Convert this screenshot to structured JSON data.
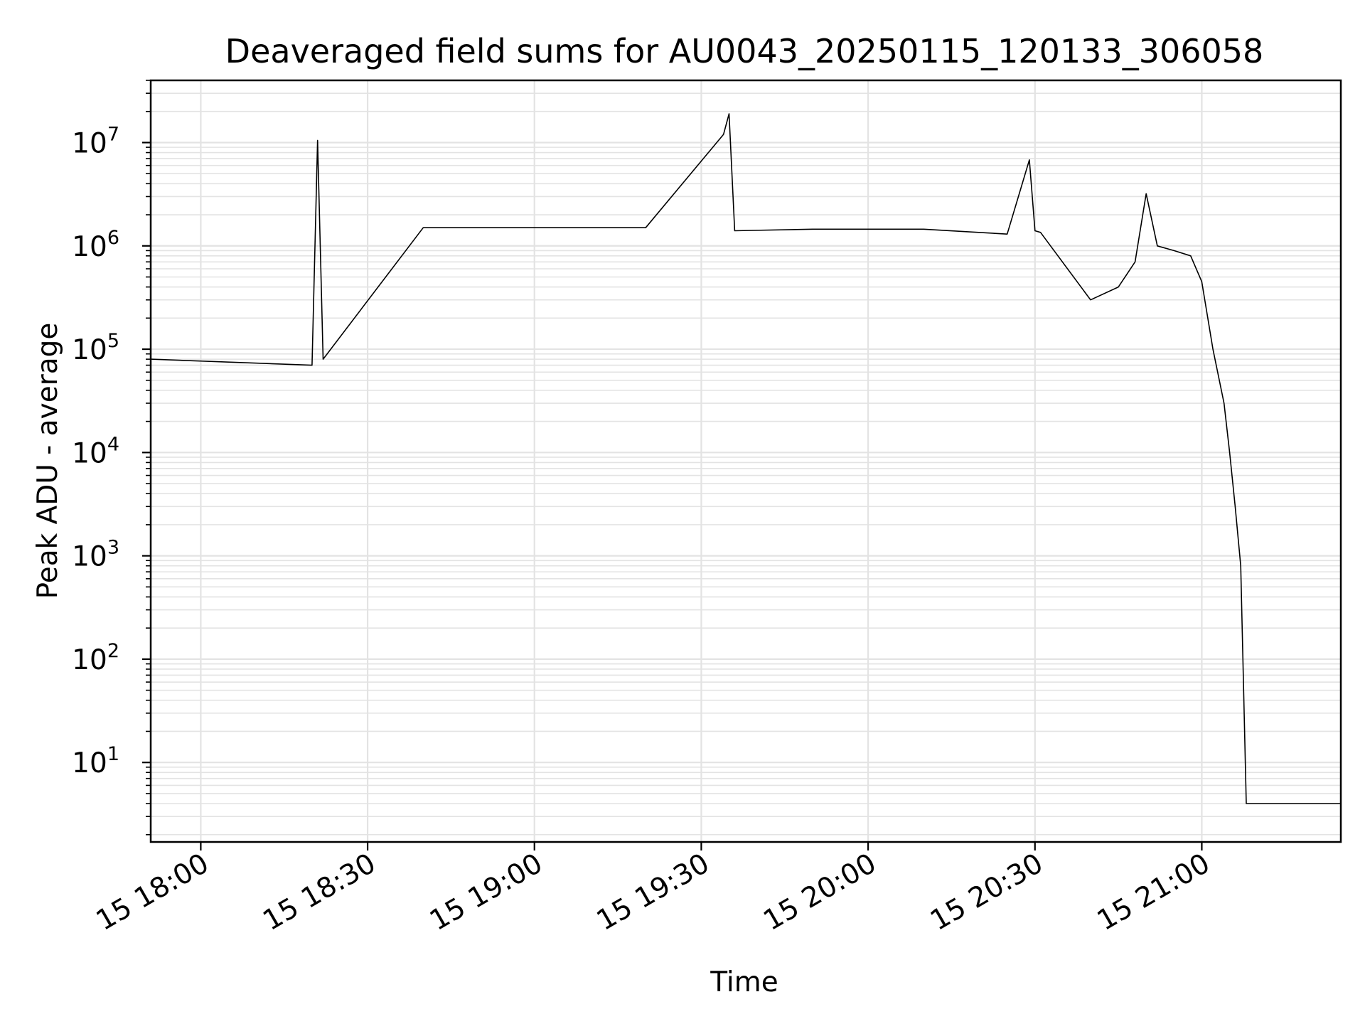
{
  "chart_data": {
    "type": "line",
    "title": "Deaveraged field sums for AU0043_20250115_120133_306058",
    "xlabel": "Time",
    "ylabel": "Peak ADU - average",
    "yscale": "log",
    "ylim": [
      1.7,
      40000000
    ],
    "xlim": [
      "2025-01-15 17:51",
      "2025-01-15 21:25"
    ],
    "grid": true,
    "line_color": "#000000",
    "grid_color": "#e3e3e3",
    "x_ticks": [
      "15 18:00",
      "15 18:30",
      "15 19:00",
      "15 19:30",
      "15 20:00",
      "15 20:30",
      "15 21:00"
    ],
    "y_ticks": [
      {
        "value": 10,
        "base": "10",
        "exp": "1"
      },
      {
        "value": 100,
        "base": "10",
        "exp": "2"
      },
      {
        "value": 1000,
        "base": "10",
        "exp": "3"
      },
      {
        "value": 10000,
        "base": "10",
        "exp": "4"
      },
      {
        "value": 100000,
        "base": "10",
        "exp": "5"
      },
      {
        "value": 1000000,
        "base": "10",
        "exp": "6"
      },
      {
        "value": 10000000,
        "base": "10",
        "exp": "7"
      }
    ],
    "series": [
      {
        "x": [
          "17:51",
          "18:05",
          "18:20",
          "18:21",
          "18:22",
          "18:40",
          "19:00",
          "19:20",
          "19:34",
          "19:35",
          "19:36",
          "19:50",
          "20:10",
          "20:25",
          "20:29",
          "20:30",
          "20:31",
          "20:40",
          "20:45",
          "20:48",
          "20:50",
          "20:52",
          "20:55",
          "20:58",
          "21:00",
          "21:02",
          "21:04",
          "21:05",
          "21:06",
          "21:07",
          "21:08",
          "21:09",
          "21:10",
          "21:12",
          "21:15",
          "21:20",
          "21:25"
        ],
        "y": [
          80000,
          75000,
          70000,
          10500000,
          80000,
          1500000,
          1500000,
          1500000,
          12000000,
          19000000,
          1400000,
          1450000,
          1450000,
          1300000,
          6800000,
          1400000,
          1350000,
          300000,
          400000,
          700000,
          3200000,
          1000000,
          900000,
          800000,
          450000,
          100000,
          30000,
          10000,
          3000,
          800,
          4,
          4,
          4,
          4,
          4,
          4,
          4
        ]
      }
    ]
  }
}
